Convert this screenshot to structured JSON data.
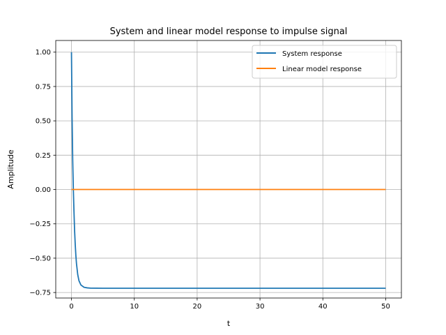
{
  "chart_data": {
    "type": "line",
    "title": "System and linear model response to impulse signal",
    "xlabel": "t",
    "ylabel": "Amplitude",
    "xlim": [
      -2.5,
      52.5
    ],
    "ylim": [
      -0.79,
      1.085
    ],
    "x_ticks": [
      0,
      10,
      20,
      30,
      40,
      50
    ],
    "y_ticks": [
      1.0,
      0.75,
      0.5,
      0.25,
      0.0,
      -0.25,
      -0.5,
      -0.75
    ],
    "x_tick_labels": [
      "0",
      "10",
      "20",
      "30",
      "40",
      "50"
    ],
    "y_tick_labels": [
      "1.00",
      "0.75",
      "0.50",
      "0.25",
      "0.00",
      "−0.25",
      "−0.50",
      "−0.75"
    ],
    "grid": true,
    "legend_position": "top-right",
    "series": [
      {
        "name": "System response",
        "color": "#1f77b4",
        "x": [
          0,
          0.1,
          0.2,
          0.3,
          0.4,
          0.5,
          0.6,
          0.7,
          0.8,
          1.0,
          1.2,
          1.5,
          2.0,
          2.5,
          3,
          5,
          10,
          20,
          30,
          40,
          50
        ],
        "y": [
          1.0,
          0.52,
          0.21,
          0.0,
          -0.16,
          -0.3,
          -0.4,
          -0.48,
          -0.54,
          -0.62,
          -0.665,
          -0.695,
          -0.712,
          -0.716,
          -0.718,
          -0.719,
          -0.719,
          -0.719,
          -0.719,
          -0.719,
          -0.719
        ]
      },
      {
        "name": "Linear model response",
        "color": "#ff7f0e",
        "x": [
          0,
          50
        ],
        "y": [
          0.0,
          0.0
        ]
      }
    ]
  }
}
